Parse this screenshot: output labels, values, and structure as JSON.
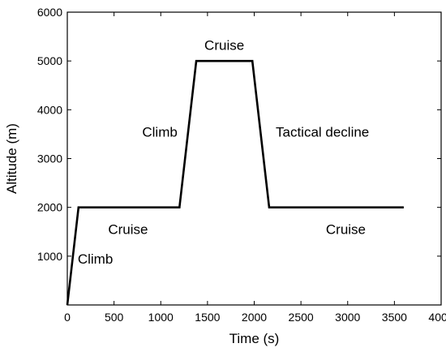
{
  "chart_data": {
    "type": "line",
    "xlabel": "Time (s)",
    "ylabel": "Altitude (m)",
    "xlim": [
      0,
      4000
    ],
    "ylim": [
      0,
      6000
    ],
    "xticks": [
      0,
      500,
      1000,
      1500,
      2000,
      2500,
      3000,
      3500,
      4000
    ],
    "yticks": [
      1000,
      2000,
      3000,
      4000,
      5000,
      6000
    ],
    "grid": false,
    "legend": "none",
    "series": [
      {
        "x": [
          0,
          120,
          1200,
          1380,
          1980,
          2160,
          3600
        ],
        "y": [
          0,
          2000,
          2000,
          5000,
          5000,
          2000,
          2000
        ],
        "color": "#000000"
      }
    ],
    "annotations": [
      {
        "text": "Climb",
        "x": 300,
        "y": 950
      },
      {
        "text": "Cruise",
        "x": 650,
        "y": 1550
      },
      {
        "text": "Climb",
        "x": 990,
        "y": 3550
      },
      {
        "text": "Cruise",
        "x": 1680,
        "y": 5330
      },
      {
        "text": "Tactical decline",
        "x": 2730,
        "y": 3550
      },
      {
        "text": "Cruise",
        "x": 2980,
        "y": 1550
      }
    ]
  }
}
